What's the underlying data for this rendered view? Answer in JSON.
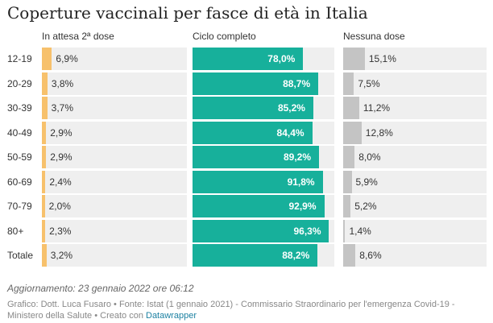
{
  "title": "Coperture vaccinali per fasce di età in Italia",
  "columns": [
    {
      "name": "In attesa 2ª dose",
      "color": "#f7c16c"
    },
    {
      "name": "Ciclo completo",
      "color": "#17b09b"
    },
    {
      "name": "Nessuna dose",
      "color": "#c4c4c4"
    }
  ],
  "chart_data": {
    "type": "bar",
    "categories": [
      "12-19",
      "20-29",
      "30-39",
      "40-49",
      "50-59",
      "60-69",
      "70-79",
      "80+",
      "Totale"
    ],
    "series": [
      {
        "name": "In attesa 2ª dose",
        "values": [
          6.9,
          3.8,
          3.7,
          2.9,
          2.9,
          2.4,
          2.0,
          2.3,
          3.2
        ],
        "labels": [
          "6,9%",
          "3,8%",
          "3,7%",
          "2,9%",
          "2,9%",
          "2,4%",
          "2,0%",
          "2,3%",
          "3,2%"
        ]
      },
      {
        "name": "Ciclo completo",
        "values": [
          78.0,
          88.7,
          85.2,
          84.4,
          89.2,
          91.8,
          92.9,
          96.3,
          88.2
        ],
        "labels": [
          "78,0%",
          "88,7%",
          "85,2%",
          "84,4%",
          "89,2%",
          "91,8%",
          "92,9%",
          "96,3%",
          "88,2%"
        ]
      },
      {
        "name": "Nessuna dose",
        "values": [
          15.1,
          7.5,
          11.2,
          12.8,
          8.0,
          5.9,
          5.2,
          1.4,
          8.6
        ],
        "labels": [
          "15,1%",
          "7,5%",
          "11,2%",
          "12,8%",
          "8,0%",
          "5,9%",
          "5,2%",
          "1,4%",
          "8,6%"
        ]
      }
    ],
    "ylim": [
      0,
      100
    ]
  },
  "notes": "Aggiornamento: 23 gennaio 2022 ore 06:12",
  "credits": {
    "text": "Grafico: Dott. Luca Fusaro • Fonte: Istat (1 gennaio 2021) - Commissario Straordinario per l'emergenza Covid-19 - Ministero della Salute • Creato con ",
    "link": "Datawrapper"
  }
}
